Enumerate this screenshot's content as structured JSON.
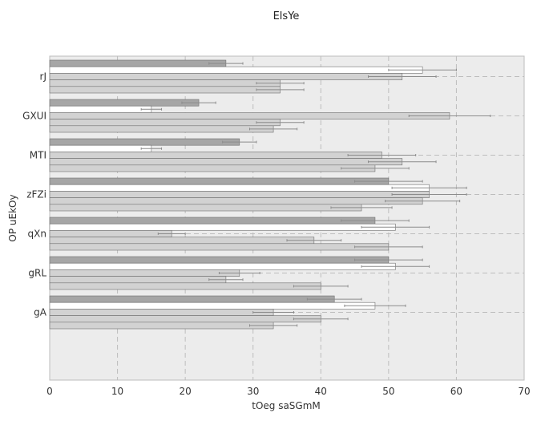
{
  "chart_data": {
    "type": "bar",
    "orientation": "horizontal",
    "title": "ElsYe",
    "xlabel": "tOeg saSGmM",
    "ylabel": "OP uEkOy",
    "xlim": [
      0,
      70
    ],
    "x_ticks": [
      0,
      10,
      20,
      30,
      40,
      50,
      60,
      70
    ],
    "grid": true,
    "legend": "none",
    "categories": [
      "rJ",
      "GXUI",
      "MTI",
      "zFZi",
      "qXn",
      "gRL",
      "gA"
    ],
    "series": [
      {
        "color": "#a6a6a6",
        "values": [
          26,
          22,
          28,
          50,
          48,
          50,
          42
        ],
        "errors": [
          2.5,
          2.5,
          2.5,
          5,
          5,
          5,
          4
        ]
      },
      {
        "color": "#ffffff",
        "values": [
          55,
          15,
          15,
          56,
          51,
          51,
          48
        ],
        "errors": [
          5,
          1.5,
          1.5,
          5.5,
          5,
          5,
          4.5
        ]
      },
      {
        "color": "#d2d2d2",
        "values": [
          52,
          59,
          49,
          56,
          18,
          28,
          33
        ],
        "errors": [
          5,
          6,
          5,
          5.5,
          2,
          3,
          3
        ]
      },
      {
        "color": "#d2d2d2",
        "values": [
          34,
          34,
          52,
          55,
          39,
          26,
          40
        ],
        "errors": [
          3.5,
          3.5,
          5,
          5.5,
          4,
          2.5,
          4
        ]
      },
      {
        "color": "#d2d2d2",
        "values": [
          34,
          33,
          48,
          46,
          50,
          40,
          33
        ],
        "errors": [
          3.5,
          3.5,
          5,
          4.5,
          5,
          4,
          3.5
        ]
      }
    ]
  },
  "colors": {
    "plot_background": "#ececec",
    "grid": "#bdbdbd",
    "bar_edge": "#6e6e6e",
    "error_bar": "#8c8c8c"
  }
}
